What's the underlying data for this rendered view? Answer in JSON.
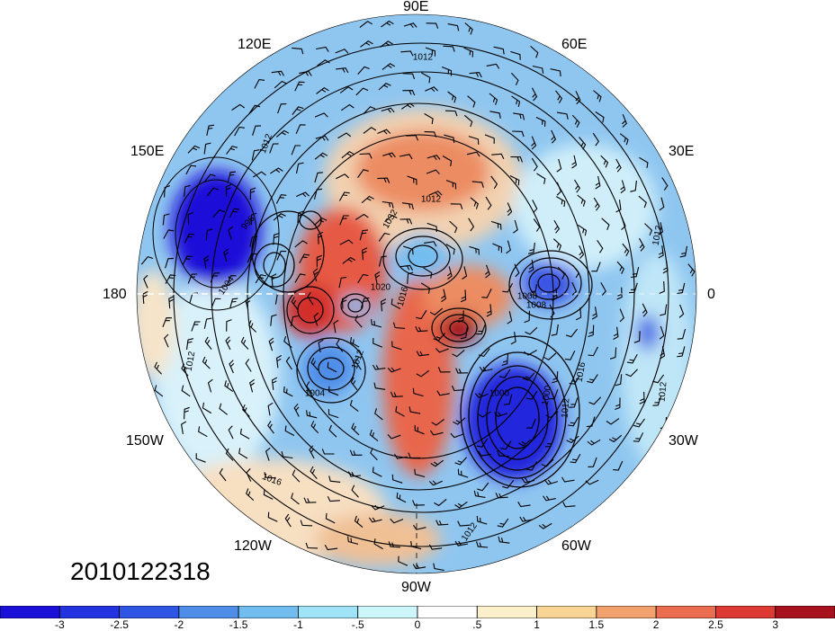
{
  "timestamp": "2010122318",
  "longitude_labels": [
    "90E",
    "60E",
    "120E",
    "30E",
    "150E",
    "180",
    "0",
    "150W",
    "30W",
    "120W",
    "60W",
    "90W"
  ],
  "isobar_labels": [
    "1012",
    "1012",
    "1016",
    "1012",
    "1012",
    "996",
    "1032",
    "1004",
    "1008",
    "1012",
    "1016",
    "1012",
    "1012",
    "1004",
    "1000",
    "1000",
    "1012",
    "1016",
    "1008",
    "1012",
    "1020"
  ],
  "colorbar": {
    "tick_labels": [
      "-3",
      "-2.5",
      "-2",
      "-1.5",
      "-1",
      "-.5",
      "0",
      ".5",
      "1",
      "1.5",
      "2",
      "2.5",
      "3"
    ],
    "colors": [
      "#1a10d8",
      "#2f55e4",
      "#4f8ee8",
      "#72bdf0",
      "#9fe3f6",
      "#cdf6fb",
      "#ffffff",
      "#fbf0cb",
      "#f8d595",
      "#f2a26f",
      "#ea6d4f",
      "#dc3a33",
      "#a8111e"
    ]
  }
}
